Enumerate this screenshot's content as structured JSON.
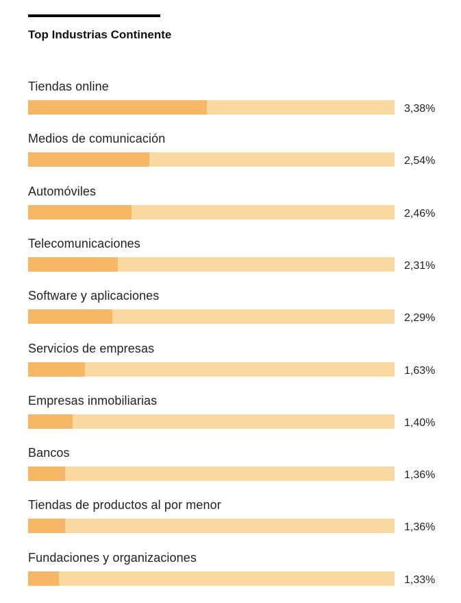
{
  "chart_data": {
    "type": "bar",
    "orientation": "horizontal",
    "title": "Top Industrias Continente",
    "categories": [
      "Tiendas online",
      "Medios de comunicación",
      "Automóviles",
      "Telecomunicaciones",
      "Software y aplicaciones",
      "Servicios de empresas",
      "Empresas inmobiliarias",
      "Bancos",
      "Tiendas de productos al por menor",
      "Fundaciones y organizaciones"
    ],
    "values": [
      3.38,
      2.54,
      2.46,
      2.31,
      2.29,
      1.63,
      1.4,
      1.36,
      1.36,
      1.33
    ],
    "value_labels": [
      "3,38%",
      "2,54%",
      "2,46%",
      "2,31%",
      "2,29%",
      "1,63%",
      "1,40%",
      "1,36%",
      "1,36%",
      "1,33%"
    ],
    "fill_fractions": [
      0.487,
      0.33,
      0.282,
      0.245,
      0.229,
      0.155,
      0.122,
      0.101,
      0.101,
      0.084
    ],
    "xlabel": "",
    "ylabel": "",
    "colors": {
      "fill": "#f5b766",
      "track": "#fad9a1",
      "rule": "#000000"
    }
  }
}
